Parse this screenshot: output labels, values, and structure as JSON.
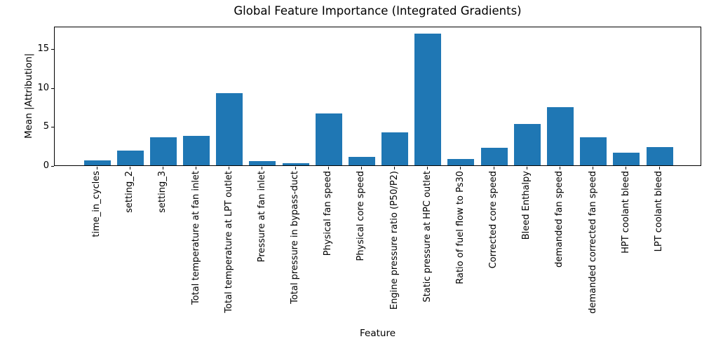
{
  "chart_data": {
    "type": "bar",
    "title": "Global Feature Importance (Integrated Gradients)",
    "xlabel": "Feature",
    "ylabel": "Mean |Attribution|",
    "categories": [
      "time_in_cycles",
      "setting_2",
      "setting_3",
      "Total temperature at fan inlet",
      "Total temperature at LPT outlet",
      "Pressure at fan inlet",
      "Total pressure in bypass-duct",
      "Physical fan speed",
      "Physical core speed",
      "Engine pressure ratio (P50/P2)",
      "Static pressure at HPC outlet",
      "Ratio of fuel flow to Ps30",
      "Corrected core speed",
      "Bleed Enthalpy",
      "demanded fan speed",
      "demanded corrected fan speed",
      "HPT coolant bleed",
      "LPT coolant bleed"
    ],
    "values": [
      0.6,
      1.9,
      3.6,
      3.8,
      9.3,
      0.55,
      0.25,
      6.7,
      1.1,
      4.2,
      16.9,
      0.85,
      2.25,
      5.3,
      7.5,
      3.6,
      1.65,
      2.3
    ],
    "yticks": [
      0,
      5,
      10,
      15
    ],
    "ylim": [
      0,
      17.9
    ],
    "grid": false,
    "legend_position": "none",
    "colors": {
      "bar": "#1f77b4",
      "axis": "#000000",
      "text": "#000000",
      "background": "#ffffff"
    }
  }
}
